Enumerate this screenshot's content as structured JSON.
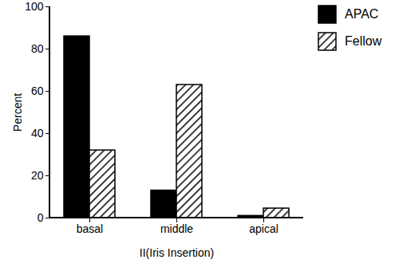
{
  "chart_data": {
    "type": "bar",
    "categories": [
      "basal",
      "middle",
      "apical"
    ],
    "series": [
      {
        "name": "APAC",
        "color": "#000000",
        "values": [
          86,
          13,
          1
        ]
      },
      {
        "name": "Fellow",
        "color": "#000000",
        "values": [
          32,
          63,
          4.5
        ]
      }
    ],
    "x_label": "II(Iris Insertion)",
    "y_label": "Percent",
    "ylim": [
      0,
      100
    ],
    "yticks": [
      0,
      20,
      40,
      60,
      80,
      100
    ],
    "legend": "right",
    "grid": false
  }
}
